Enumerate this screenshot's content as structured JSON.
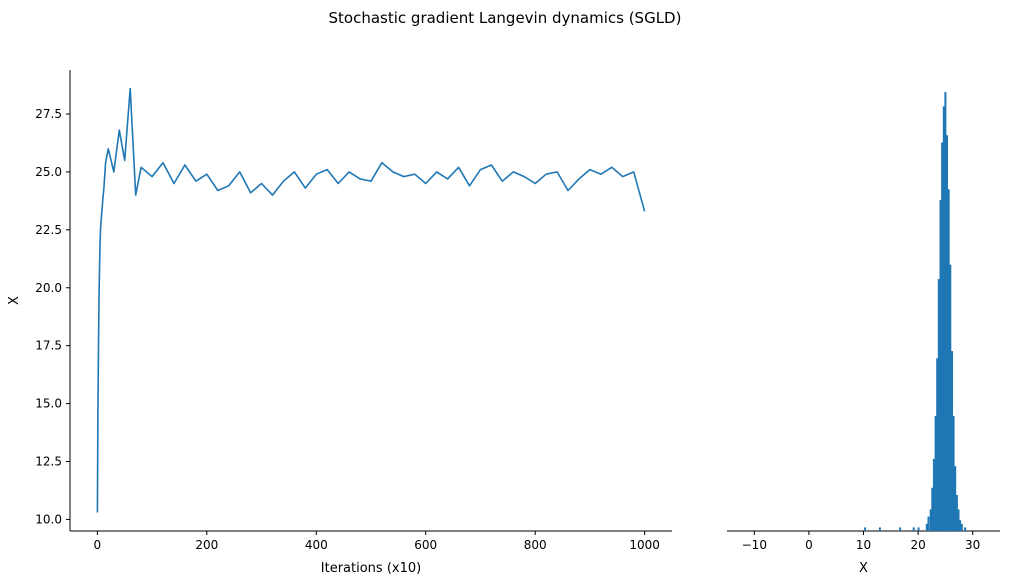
{
  "figure": {
    "title": "Stochastic gradient Langevin dynamics (SGLD)"
  },
  "chart_data": [
    {
      "type": "line",
      "title": "",
      "xlabel": "Iterations (x10)",
      "ylabel": "X",
      "xlim": [
        -50,
        1050
      ],
      "ylim": [
        9.5,
        29.4
      ],
      "xticks": [
        0,
        200,
        400,
        600,
        800,
        1000
      ],
      "yticks": [
        10.0,
        12.5,
        15.0,
        17.5,
        20.0,
        22.5,
        25.0,
        27.5
      ],
      "ytick_labels": [
        "10.0",
        "12.5",
        "15.0",
        "17.5",
        "20.0",
        "22.5",
        "25.0",
        "27.5"
      ],
      "grid": false,
      "color": "#1f77b4",
      "series": [
        {
          "x": [
            0,
            1,
            2,
            3,
            4,
            5,
            6,
            8,
            10,
            12,
            15,
            20,
            30,
            40,
            50,
            60,
            70,
            80,
            100,
            120,
            140,
            160,
            180,
            200,
            220,
            240,
            260,
            280,
            300,
            320,
            340,
            360,
            380,
            400,
            420,
            440,
            460,
            480,
            500,
            520,
            540,
            560,
            580,
            600,
            620,
            640,
            660,
            680,
            700,
            720,
            740,
            760,
            780,
            800,
            820,
            840,
            860,
            880,
            900,
            920,
            940,
            960,
            980,
            1000
          ],
          "y": [
            10.3,
            14.5,
            17.5,
            19.5,
            21.0,
            22.0,
            22.6,
            23.2,
            23.8,
            24.3,
            25.4,
            26.0,
            25.0,
            26.8,
            25.5,
            28.6,
            24.0,
            25.2,
            24.8,
            25.4,
            24.5,
            25.3,
            24.6,
            24.9,
            24.2,
            24.4,
            25.0,
            24.1,
            24.5,
            24.0,
            24.6,
            25.0,
            24.3,
            24.9,
            25.1,
            24.5,
            25.0,
            24.7,
            24.6,
            25.4,
            25.0,
            24.8,
            24.9,
            24.5,
            25.0,
            24.7,
            25.2,
            24.4,
            25.1,
            25.3,
            24.6,
            25.0,
            24.8,
            24.5,
            24.9,
            25.0,
            24.2,
            24.7,
            25.1,
            24.9,
            25.2,
            24.8,
            25.0,
            23.3
          ]
        }
      ]
    },
    {
      "type": "bar",
      "title": "",
      "xlabel": "X",
      "ylabel": "",
      "xlim": [
        -15,
        35
      ],
      "xticks": [
        -10,
        0,
        10,
        20,
        30
      ],
      "xtick_labels": [
        "−10",
        "0",
        "10",
        "20",
        "30"
      ],
      "grid": false,
      "color": "#1f77b4",
      "bins": [
        {
          "x": 10.3,
          "count": 1
        },
        {
          "x": 13.0,
          "count": 1
        },
        {
          "x": 16.7,
          "count": 1
        },
        {
          "x": 19.2,
          "count": 1
        },
        {
          "x": 20.1,
          "count": 1
        },
        {
          "x": 21.6,
          "count": 2
        },
        {
          "x": 21.9,
          "count": 4
        },
        {
          "x": 22.3,
          "count": 6
        },
        {
          "x": 22.6,
          "count": 12
        },
        {
          "x": 22.9,
          "count": 20
        },
        {
          "x": 23.2,
          "count": 32
        },
        {
          "x": 23.5,
          "count": 48
        },
        {
          "x": 23.8,
          "count": 70
        },
        {
          "x": 24.1,
          "count": 92
        },
        {
          "x": 24.4,
          "count": 108
        },
        {
          "x": 24.7,
          "count": 118
        },
        {
          "x": 25.0,
          "count": 122
        },
        {
          "x": 25.3,
          "count": 110
        },
        {
          "x": 25.6,
          "count": 95
        },
        {
          "x": 25.9,
          "count": 74
        },
        {
          "x": 26.2,
          "count": 50
        },
        {
          "x": 26.5,
          "count": 32
        },
        {
          "x": 26.8,
          "count": 18
        },
        {
          "x": 27.1,
          "count": 10
        },
        {
          "x": 27.4,
          "count": 6
        },
        {
          "x": 27.7,
          "count": 3
        },
        {
          "x": 28.0,
          "count": 2
        },
        {
          "x": 28.6,
          "count": 1
        }
      ]
    }
  ]
}
